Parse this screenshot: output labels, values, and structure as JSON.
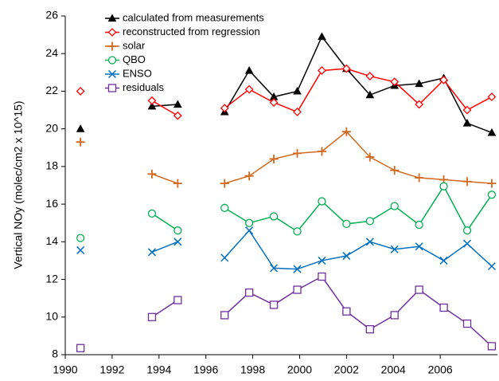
{
  "chart_data": {
    "type": "line",
    "y_label": "Vertical NOy (molec/cm2 x 10^15)",
    "x": [
      1990.65,
      1993.7,
      1994.8,
      1996.8,
      1997.85,
      1998.9,
      1999.9,
      2000.95,
      2002.0,
      2003.0,
      2004.05,
      2005.1,
      2006.15,
      2007.15,
      2008.2
    ],
    "xlim": [
      1990,
      2008.44
    ],
    "xticks": [
      1990,
      1992,
      1994,
      1996,
      1998,
      2000,
      2002,
      2004,
      2006
    ],
    "ylim": [
      8,
      26
    ],
    "yticks": [
      8,
      10,
      12,
      14,
      16,
      18,
      20,
      22,
      24,
      26
    ],
    "legend": "upper left",
    "series": [
      {
        "name": "calculated from measurements",
        "color": "#000000",
        "marker": "triangle",
        "values": [
          20.0,
          21.2,
          21.3,
          20.9,
          23.1,
          21.7,
          22.0,
          24.9,
          23.2,
          21.8,
          22.3,
          22.4,
          22.7,
          20.3,
          19.8
        ]
      },
      {
        "name": "reconstructed from regression",
        "color": "#ff0000",
        "marker": "diamond",
        "values": [
          22.0,
          21.5,
          20.7,
          21.1,
          22.1,
          21.4,
          20.9,
          23.1,
          23.2,
          22.8,
          22.5,
          21.3,
          22.6,
          21.0,
          21.7
        ]
      },
      {
        "name": "solar",
        "color": "#d2691e",
        "marker": "plus",
        "values": [
          19.3,
          17.6,
          17.1,
          17.1,
          17.5,
          18.4,
          18.7,
          18.8,
          19.85,
          18.5,
          17.8,
          17.4,
          17.3,
          17.2,
          17.1
        ]
      },
      {
        "name": "QBO",
        "color": "#00b050",
        "marker": "circle",
        "values": [
          14.2,
          15.5,
          14.6,
          15.8,
          15.0,
          15.35,
          14.55,
          16.15,
          14.95,
          15.1,
          15.9,
          14.9,
          16.95,
          14.6,
          16.5
        ]
      },
      {
        "name": "ENSO",
        "color": "#0070c0",
        "marker": "x",
        "values": [
          13.55,
          13.45,
          14.0,
          13.15,
          14.6,
          12.6,
          12.55,
          13.0,
          13.25,
          14.0,
          13.6,
          13.75,
          13.0,
          13.9,
          12.7
        ]
      },
      {
        "name": "residuals",
        "color": "#7030a0",
        "marker": "square",
        "values": [
          8.35,
          10.0,
          10.9,
          10.1,
          11.3,
          10.65,
          11.45,
          12.15,
          10.3,
          9.35,
          10.1,
          11.45,
          10.5,
          9.65,
          8.45
        ]
      }
    ]
  }
}
